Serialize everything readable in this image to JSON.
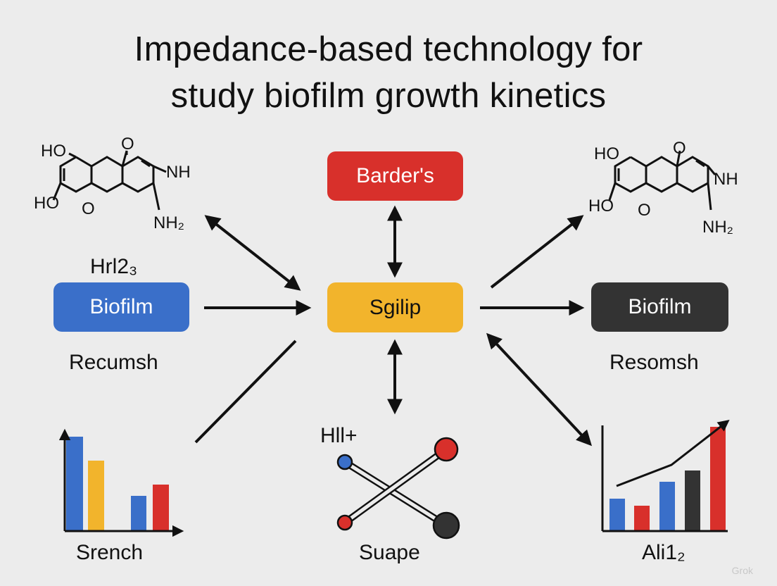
{
  "title": {
    "line1": "Impedance-based technology for",
    "line2": "study biofilm growth kinetics"
  },
  "colors": {
    "red": "#d8302b",
    "blue": "#3a6fc9",
    "yellow": "#f2b42c",
    "dark": "#333333",
    "background": "#ececec"
  },
  "boxes": {
    "top": "Barder's",
    "center": "Sgilip",
    "left": "Biofilm",
    "right": "Biofilm"
  },
  "labels": {
    "left_top": "Hrl2₃",
    "left_bottom": "Recumsh",
    "right_bottom": "Resomsh",
    "bottom_left": "Srench",
    "bottom_center_top": "Hll+",
    "bottom_center": "Suape",
    "bottom_right": "Ali1₂"
  },
  "molecule_left": {
    "atoms": [
      "HO",
      "O",
      "NH",
      "HO",
      "O",
      "NH₂"
    ]
  },
  "molecule_right": {
    "atoms": [
      "HO",
      "O",
      "NH",
      "HO",
      "O",
      "NH₂"
    ]
  },
  "watermark": "Grok",
  "icons": [
    "bar-chart-icon",
    "molecule-icon",
    "ball-and-stick-icon",
    "trend-bar-chart-icon"
  ]
}
